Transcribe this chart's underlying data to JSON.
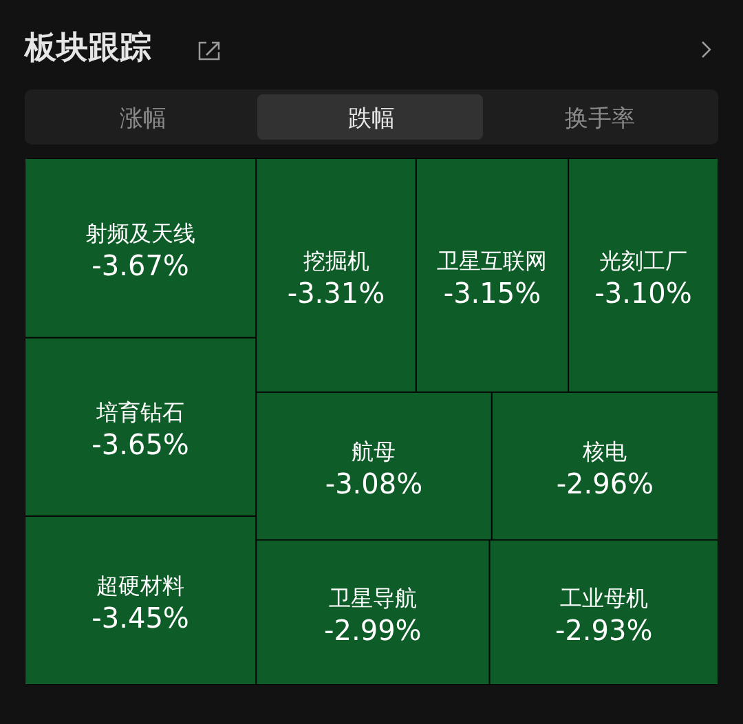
{
  "chart_data": {
    "type": "other",
    "title": "板块跟踪",
    "annotations": [
      "涨幅",
      "跌幅",
      "换手率"
    ],
    "categories": [
      "射频及天线",
      "培育钻石",
      "超硬材料",
      "挖掘机",
      "卫星互联网",
      "光刻工厂",
      "航母",
      "核电",
      "卫星导航",
      "工业母机"
    ],
    "values": [
      -3.67,
      -3.65,
      -3.45,
      -3.31,
      -3.15,
      -3.1,
      -3.08,
      -2.96,
      -2.99,
      -2.93
    ],
    "value_labels": [
      "-3.67%",
      "-3.65%",
      "-3.45%",
      "-3.31%",
      "-3.15%",
      "-3.10%",
      "-3.08%",
      "-2.96%",
      "-2.99%",
      "-2.93%"
    ],
    "color": "#0e5c27"
  }
}
